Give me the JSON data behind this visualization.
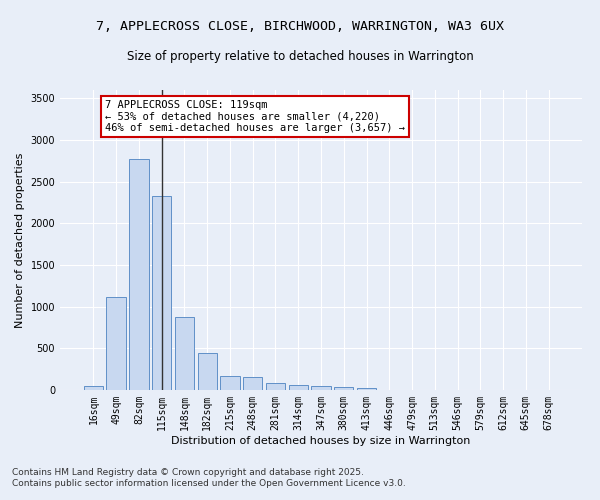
{
  "title_line1": "7, APPLECROSS CLOSE, BIRCHWOOD, WARRINGTON, WA3 6UX",
  "title_line2": "Size of property relative to detached houses in Warrington",
  "xlabel": "Distribution of detached houses by size in Warrington",
  "ylabel": "Number of detached properties",
  "categories": [
    "16sqm",
    "49sqm",
    "82sqm",
    "115sqm",
    "148sqm",
    "182sqm",
    "215sqm",
    "248sqm",
    "281sqm",
    "314sqm",
    "347sqm",
    "380sqm",
    "413sqm",
    "446sqm",
    "479sqm",
    "513sqm",
    "546sqm",
    "579sqm",
    "612sqm",
    "645sqm",
    "678sqm"
  ],
  "values": [
    50,
    1120,
    2770,
    2330,
    880,
    440,
    170,
    160,
    90,
    65,
    45,
    40,
    30,
    5,
    5,
    0,
    0,
    0,
    0,
    0,
    0
  ],
  "bar_color": "#c8d8f0",
  "bar_edge_color": "#6090c8",
  "highlight_bar_index": 3,
  "highlight_line_color": "#333333",
  "annotation_text": "7 APPLECROSS CLOSE: 119sqm\n← 53% of detached houses are smaller (4,220)\n46% of semi-detached houses are larger (3,657) →",
  "annotation_box_color": "#ffffff",
  "annotation_box_edge_color": "#cc0000",
  "bg_color": "#e8eef8",
  "grid_color": "#ffffff",
  "ylim": [
    0,
    3600
  ],
  "yticks": [
    0,
    500,
    1000,
    1500,
    2000,
    2500,
    3000,
    3500
  ],
  "footnote_line1": "Contains HM Land Registry data © Crown copyright and database right 2025.",
  "footnote_line2": "Contains public sector information licensed under the Open Government Licence v3.0.",
  "title_fontsize": 9.5,
  "subtitle_fontsize": 8.5,
  "axis_label_fontsize": 8,
  "tick_fontsize": 7,
  "annotation_fontsize": 7.5,
  "footnote_fontsize": 6.5
}
